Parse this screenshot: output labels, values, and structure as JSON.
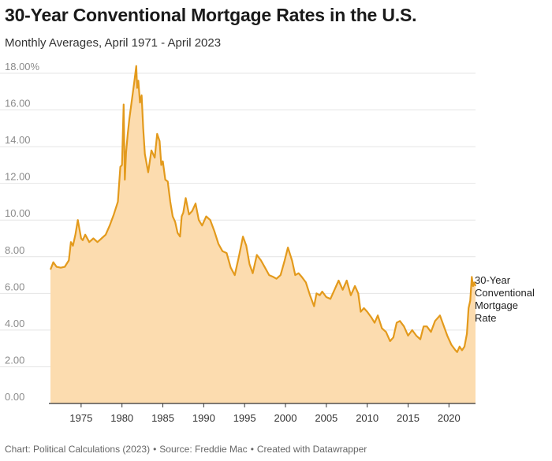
{
  "title": "30-Year Conventional Mortgage Rates in the U.S.",
  "subtitle": "Monthly Averages, April 1971 - April 2023",
  "footer": {
    "chart_credit": "Chart: Political Calculations (2023)",
    "source": "Source: Freddie Mac",
    "tool": "Created with Datawrapper"
  },
  "colors": {
    "line": "#e39a1c",
    "area": "#fcdcaf",
    "grid": "#e4e4e4",
    "axis": "#333333"
  },
  "chart_data": {
    "type": "area",
    "title": "30-Year Conventional Mortgage Rates in the U.S.",
    "subtitle": "Monthly Averages, April 1971 - April 2023",
    "xlim": [
      1971.25,
      2023.25
    ],
    "ylim": [
      0,
      18
    ],
    "y_ticks": [
      {
        "value": 0,
        "label": "0.00"
      },
      {
        "value": 2,
        "label": "2.00"
      },
      {
        "value": 4,
        "label": "4.00"
      },
      {
        "value": 6,
        "label": "6.00"
      },
      {
        "value": 8,
        "label": "8.00"
      },
      {
        "value": 10,
        "label": "10.00"
      },
      {
        "value": 12,
        "label": "12.00"
      },
      {
        "value": 14,
        "label": "14.00"
      },
      {
        "value": 16,
        "label": "16.00"
      },
      {
        "value": 18,
        "label": "18.00%"
      }
    ],
    "x_ticks": [
      {
        "value": 1975,
        "label": "1975"
      },
      {
        "value": 1980,
        "label": "1980"
      },
      {
        "value": 1985,
        "label": "1985"
      },
      {
        "value": 1990,
        "label": "1990"
      },
      {
        "value": 1995,
        "label": "1995"
      },
      {
        "value": 2000,
        "label": "2000"
      },
      {
        "value": 2005,
        "label": "2005"
      },
      {
        "value": 2010,
        "label": "2010"
      },
      {
        "value": 2015,
        "label": "2015"
      },
      {
        "value": 2020,
        "label": "2020"
      }
    ],
    "grid": true,
    "series": [
      {
        "name": "30-Year Conventional Mortgage Rate",
        "label_lines": [
          "30-Year",
          "Conventional",
          "Mortgage",
          "Rate"
        ],
        "x": [
          1971.25,
          1971.6,
          1972.0,
          1972.5,
          1973.0,
          1973.5,
          1973.75,
          1974.0,
          1974.3,
          1974.6,
          1974.8,
          1975.0,
          1975.2,
          1975.5,
          1976.0,
          1976.5,
          1977.0,
          1977.5,
          1978.0,
          1978.5,
          1979.0,
          1979.5,
          1979.8,
          1980.0,
          1980.2,
          1980.35,
          1980.5,
          1980.7,
          1980.9,
          1981.2,
          1981.5,
          1981.75,
          1981.85,
          1982.0,
          1982.2,
          1982.4,
          1982.6,
          1982.8,
          1983.2,
          1983.6,
          1984.0,
          1984.3,
          1984.6,
          1984.8,
          1985.0,
          1985.3,
          1985.6,
          1985.9,
          1986.2,
          1986.5,
          1986.8,
          1987.1,
          1987.3,
          1987.5,
          1987.8,
          1988.2,
          1988.6,
          1989.0,
          1989.4,
          1989.8,
          1990.3,
          1990.8,
          1991.3,
          1991.8,
          1992.3,
          1992.8,
          1993.3,
          1993.8,
          1994.3,
          1994.8,
          1995.2,
          1995.6,
          1996.0,
          1996.5,
          1997.0,
          1997.5,
          1998.0,
          1998.5,
          1998.9,
          1999.4,
          1999.9,
          2000.3,
          2000.8,
          2001.2,
          2001.6,
          2002.0,
          2002.5,
          2003.0,
          2003.5,
          2003.8,
          2004.2,
          2004.5,
          2005.0,
          2005.5,
          2006.0,
          2006.5,
          2007.0,
          2007.5,
          2008.0,
          2008.5,
          2008.9,
          2009.2,
          2009.6,
          2010.0,
          2010.5,
          2010.9,
          2011.3,
          2011.8,
          2012.3,
          2012.8,
          2013.2,
          2013.6,
          2014.0,
          2014.5,
          2015.0,
          2015.5,
          2016.0,
          2016.5,
          2016.9,
          2017.3,
          2017.8,
          2018.3,
          2018.9,
          2019.3,
          2019.8,
          2020.3,
          2020.8,
          2021.0,
          2021.3,
          2021.6,
          2021.9,
          2022.2,
          2022.4,
          2022.6,
          2022.8,
          2022.95,
          2023.1,
          2023.25
        ],
        "values": [
          7.3,
          7.7,
          7.45,
          7.4,
          7.45,
          7.8,
          8.8,
          8.6,
          9.2,
          10.0,
          9.5,
          9.0,
          8.9,
          9.2,
          8.8,
          9.0,
          8.8,
          9.0,
          9.2,
          9.7,
          10.3,
          11.0,
          12.9,
          13.0,
          16.3,
          12.2,
          13.7,
          14.7,
          15.5,
          16.5,
          17.5,
          18.4,
          17.2,
          17.6,
          16.4,
          16.8,
          15.0,
          13.6,
          12.6,
          13.8,
          13.4,
          14.7,
          14.3,
          13.0,
          13.2,
          12.2,
          12.1,
          11.0,
          10.2,
          9.9,
          9.3,
          9.1,
          10.2,
          10.4,
          11.2,
          10.3,
          10.5,
          10.9,
          10.0,
          9.7,
          10.2,
          10.0,
          9.4,
          8.7,
          8.3,
          8.2,
          7.4,
          7.0,
          8.0,
          9.1,
          8.6,
          7.6,
          7.1,
          8.1,
          7.8,
          7.4,
          7.0,
          6.9,
          6.8,
          7.0,
          7.8,
          8.5,
          7.8,
          7.0,
          7.1,
          6.9,
          6.6,
          5.9,
          5.3,
          6.0,
          5.9,
          6.1,
          5.8,
          5.7,
          6.2,
          6.7,
          6.2,
          6.7,
          5.9,
          6.4,
          6.0,
          5.0,
          5.2,
          5.0,
          4.7,
          4.4,
          4.8,
          4.1,
          3.9,
          3.4,
          3.6,
          4.4,
          4.5,
          4.2,
          3.7,
          4.0,
          3.7,
          3.5,
          4.2,
          4.2,
          3.9,
          4.5,
          4.8,
          4.3,
          3.7,
          3.2,
          2.9,
          2.8,
          3.1,
          2.9,
          3.1,
          3.8,
          5.2,
          5.6,
          6.9,
          6.4,
          6.6,
          6.4
        ]
      }
    ]
  }
}
